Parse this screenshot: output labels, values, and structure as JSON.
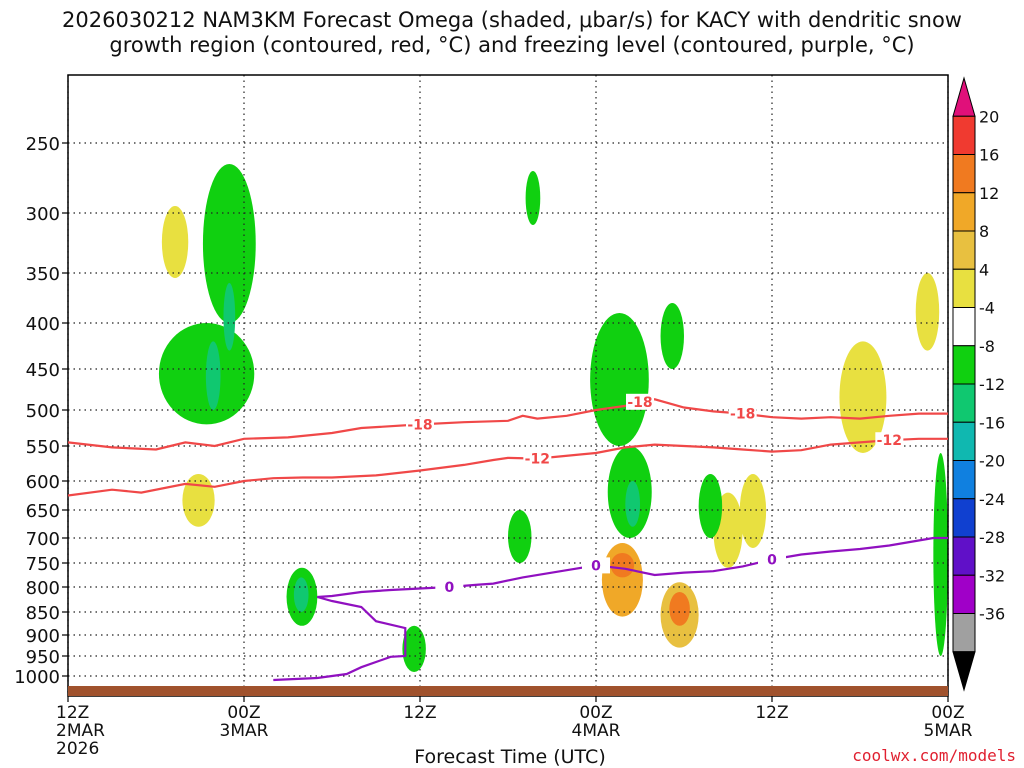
{
  "header": {
    "line1": "2026030212 NAM3KM Forecast Omega (shaded, μbar/s) for KACY with dendritic snow",
    "line2": "growth region (contoured, red, °C) and freezing level (contoured, purple, °C)"
  },
  "footer": {
    "credit": "coolwx.com/models",
    "xlabel": "Forecast Time (UTC)"
  },
  "chart_data": {
    "type": "heatmap",
    "title": "2026030212 NAM3KM Forecast Omega (shaded, μbar/s) for KACY with dendritic snow growth region (contoured, red, °C) and freezing level (contoured, purple, °C)",
    "xlabel": "Forecast Time (UTC)",
    "ylabel": "",
    "x_unit": "forecast hour from 2026-03-02 12Z",
    "xlim": [
      0,
      60
    ],
    "y_levels_hpa": [
      250,
      300,
      350,
      400,
      450,
      500,
      550,
      600,
      650,
      700,
      750,
      800,
      850,
      900,
      950,
      1000
    ],
    "x_ticks": [
      {
        "hour": 0,
        "label": [
          "12Z",
          "2MAR",
          "2026"
        ]
      },
      {
        "hour": 12,
        "label": [
          "00Z",
          "3MAR"
        ]
      },
      {
        "hour": 24,
        "label": [
          "12Z"
        ]
      },
      {
        "hour": 36,
        "label": [
          "00Z",
          "4MAR"
        ]
      },
      {
        "hour": 48,
        "label": [
          "12Z"
        ]
      },
      {
        "hour": 60,
        "label": [
          "00Z",
          "5MAR"
        ]
      }
    ],
    "colorbar": {
      "labels": [
        "20",
        "16",
        "12",
        "8",
        "4",
        "-4",
        "-8",
        "-12",
        "-16",
        "-20",
        "-24",
        "-28",
        "-32",
        "-36"
      ],
      "colors": [
        "#e0107a",
        "#f03a30",
        "#f07a20",
        "#f0a828",
        "#e8c040",
        "#e8e040",
        "#ffffff",
        "#10d010",
        "#10c870",
        "#10b8b0",
        "#1080e0",
        "#1040d0",
        "#6010c8",
        "#a000c8",
        "#a0a0a0",
        "#000000"
      ]
    },
    "contours": [
      {
        "value": "-18",
        "color": "#f04848",
        "label": "-18",
        "points": [
          [
            0,
            545
          ],
          [
            3,
            552
          ],
          [
            6,
            555
          ],
          [
            8,
            545
          ],
          [
            10,
            550
          ],
          [
            12,
            540
          ],
          [
            15,
            538
          ],
          [
            18,
            532
          ],
          [
            20,
            525
          ],
          [
            24,
            520
          ],
          [
            27,
            517
          ],
          [
            30,
            515
          ],
          [
            31,
            508
          ],
          [
            32,
            512
          ],
          [
            34,
            508
          ],
          [
            36,
            500
          ],
          [
            38,
            495
          ],
          [
            39,
            490
          ],
          [
            40,
            487
          ],
          [
            42,
            497
          ],
          [
            44,
            502
          ],
          [
            46,
            505
          ],
          [
            48,
            510
          ],
          [
            50,
            512
          ],
          [
            52,
            510
          ],
          [
            54,
            512
          ],
          [
            56,
            508
          ],
          [
            58,
            505
          ],
          [
            60,
            505
          ]
        ]
      },
      {
        "value": "-12",
        "color": "#f04848",
        "label": "-12",
        "points": [
          [
            0,
            625
          ],
          [
            3,
            615
          ],
          [
            5,
            620
          ],
          [
            8,
            605
          ],
          [
            10,
            610
          ],
          [
            12,
            600
          ],
          [
            14,
            596
          ],
          [
            16,
            595
          ],
          [
            18,
            595
          ],
          [
            21,
            592
          ],
          [
            24,
            585
          ],
          [
            27,
            577
          ],
          [
            29,
            570
          ],
          [
            30,
            567
          ],
          [
            32,
            568
          ],
          [
            35,
            562
          ],
          [
            36,
            560
          ],
          [
            38,
            552
          ],
          [
            40,
            548
          ],
          [
            42,
            550
          ],
          [
            44,
            552
          ],
          [
            46,
            555
          ],
          [
            48,
            558
          ],
          [
            50,
            556
          ],
          [
            52,
            548
          ],
          [
            54,
            545
          ],
          [
            56,
            542
          ],
          [
            58,
            540
          ],
          [
            60,
            540
          ]
        ]
      },
      {
        "value": "0",
        "color": "#9010c0",
        "label": "0",
        "points": [
          [
            14,
            1010
          ],
          [
            17,
            1005
          ],
          [
            19,
            995
          ],
          [
            20,
            978
          ],
          [
            22,
            952
          ],
          [
            23,
            950
          ],
          [
            23,
            885
          ],
          [
            21,
            870
          ],
          [
            20,
            840
          ],
          [
            18,
            828
          ],
          [
            17,
            820
          ],
          [
            18,
            818
          ],
          [
            20,
            810
          ],
          [
            22,
            806
          ],
          [
            24,
            803
          ],
          [
            26,
            800
          ],
          [
            28,
            795
          ],
          [
            29,
            793
          ],
          [
            31,
            780
          ],
          [
            34,
            765
          ],
          [
            36,
            755
          ],
          [
            38,
            762
          ],
          [
            40,
            775
          ],
          [
            42,
            770
          ],
          [
            44,
            767
          ],
          [
            46,
            757
          ],
          [
            48,
            743
          ],
          [
            50,
            733
          ],
          [
            52,
            727
          ],
          [
            54,
            722
          ],
          [
            56,
            715
          ],
          [
            58,
            705
          ],
          [
            59,
            700
          ],
          [
            60,
            700
          ]
        ]
      }
    ],
    "omega_cells": [
      {
        "t0": 6.4,
        "t1": 8.2,
        "p0": 295,
        "p1": 355,
        "color": "#e8e040"
      },
      {
        "t0": 6.2,
        "t1": 12.7,
        "p0": 400,
        "p1": 520,
        "color": "#10d010"
      },
      {
        "t0": 9.2,
        "t1": 12.8,
        "p0": 265,
        "p1": 400,
        "color": "#10d010"
      },
      {
        "t0": 9.4,
        "t1": 10.4,
        "p0": 420,
        "p1": 500,
        "color": "#10c870"
      },
      {
        "t0": 10.6,
        "t1": 11.4,
        "p0": 360,
        "p1": 430,
        "color": "#10c870"
      },
      {
        "t0": 7.8,
        "t1": 10.0,
        "p0": 590,
        "p1": 680,
        "color": "#e8e040"
      },
      {
        "t0": 14.9,
        "t1": 17.0,
        "p0": 760,
        "p1": 880,
        "color": "#10d010"
      },
      {
        "t0": 15.4,
        "t1": 16.4,
        "p0": 780,
        "p1": 850,
        "color": "#10c870"
      },
      {
        "t0": 22.8,
        "t1": 24.4,
        "p0": 880,
        "p1": 990,
        "color": "#10d010"
      },
      {
        "t0": 30.0,
        "t1": 31.6,
        "p0": 650,
        "p1": 750,
        "color": "#10d010"
      },
      {
        "t0": 31.2,
        "t1": 32.2,
        "p0": 270,
        "p1": 310,
        "color": "#10d010"
      },
      {
        "t0": 35.6,
        "t1": 39.6,
        "p0": 390,
        "p1": 550,
        "color": "#10d010"
      },
      {
        "t0": 36.8,
        "t1": 39.8,
        "p0": 550,
        "p1": 700,
        "color": "#10d010"
      },
      {
        "t0": 38.0,
        "t1": 39.0,
        "p0": 600,
        "p1": 680,
        "color": "#10c870"
      },
      {
        "t0": 40.4,
        "t1": 42.0,
        "p0": 380,
        "p1": 450,
        "color": "#10d010"
      },
      {
        "t0": 36.4,
        "t1": 39.2,
        "p0": 710,
        "p1": 860,
        "color": "#f0a828"
      },
      {
        "t0": 37.0,
        "t1": 38.6,
        "p0": 730,
        "p1": 780,
        "color": "#f07a20"
      },
      {
        "t0": 40.4,
        "t1": 43.0,
        "p0": 790,
        "p1": 930,
        "color": "#e8c040"
      },
      {
        "t0": 41.0,
        "t1": 42.4,
        "p0": 810,
        "p1": 880,
        "color": "#f07a20"
      },
      {
        "t0": 44.0,
        "t1": 46.0,
        "p0": 620,
        "p1": 760,
        "color": "#e8e040"
      },
      {
        "t0": 45.8,
        "t1": 47.6,
        "p0": 590,
        "p1": 720,
        "color": "#e8e040"
      },
      {
        "t0": 43.0,
        "t1": 44.6,
        "p0": 590,
        "p1": 700,
        "color": "#10d010"
      },
      {
        "t0": 52.6,
        "t1": 55.8,
        "p0": 420,
        "p1": 560,
        "color": "#e8e040"
      },
      {
        "t0": 57.8,
        "t1": 59.4,
        "p0": 350,
        "p1": 430,
        "color": "#e8e040"
      },
      {
        "t0": 59.0,
        "t1": 60.0,
        "p0": 560,
        "p1": 950,
        "color": "#10d010"
      }
    ]
  }
}
